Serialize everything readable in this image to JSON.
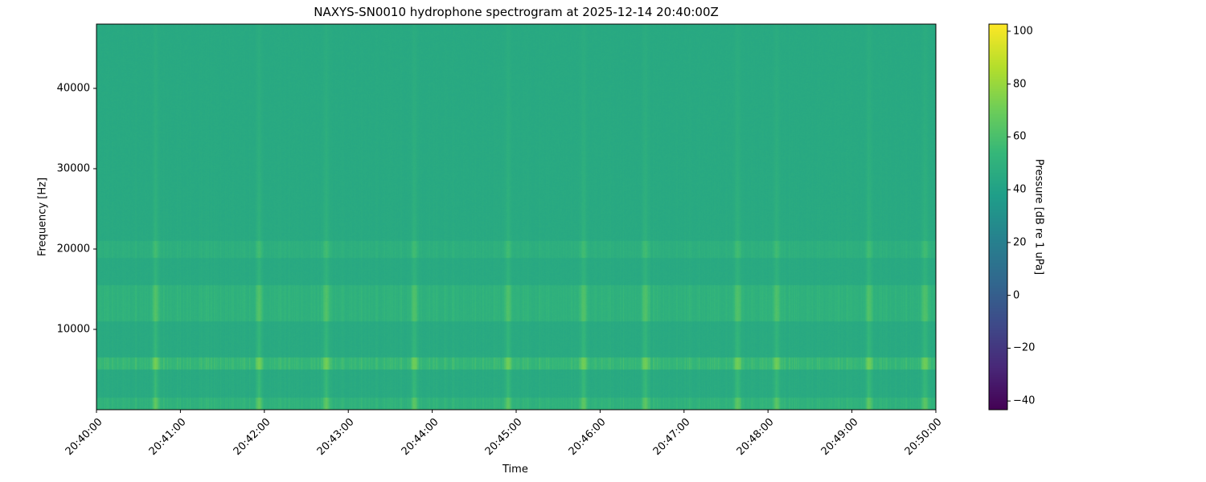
{
  "chart_data": {
    "type": "heatmap",
    "title": "NAXYS-SN0010 hydrophone spectrogram at 2025-12-14 20:40:00Z",
    "xlabel": "Time",
    "ylabel": "Frequency [Hz]",
    "colorbar_label": "Pressure [dB re 1 uPa]",
    "colormap": "viridis",
    "xlim": [
      "20:40:00",
      "20:50:00"
    ],
    "ylim": [
      0,
      48000
    ],
    "clim": [
      -43.3,
      102.7
    ],
    "x_ticks": [
      "20:40:00",
      "20:41:00",
      "20:42:00",
      "20:43:00",
      "20:44:00",
      "20:45:00",
      "20:46:00",
      "20:47:00",
      "20:48:00",
      "20:49:00",
      "20:50:00"
    ],
    "y_ticks": [
      10000,
      20000,
      30000,
      40000
    ],
    "colorbar_ticks": [
      -40,
      -20,
      0,
      20,
      40,
      60,
      80,
      100
    ],
    "background_level_db": 45,
    "bands": [
      {
        "freq_hz": [
          5000,
          6500
        ],
        "level_db": 62
      },
      {
        "freq_hz": [
          11000,
          15500
        ],
        "level_db": 55
      },
      {
        "freq_hz": [
          19000,
          21000
        ],
        "level_db": 52
      },
      {
        "freq_hz": [
          0,
          1500
        ],
        "level_db": 55
      }
    ],
    "transient_times": [
      "20:40:42",
      "20:41:56",
      "20:42:44",
      "20:43:47",
      "20:44:54",
      "20:45:48",
      "20:46:32",
      "20:47:38",
      "20:48:06",
      "20:49:12",
      "20:49:52"
    ]
  }
}
